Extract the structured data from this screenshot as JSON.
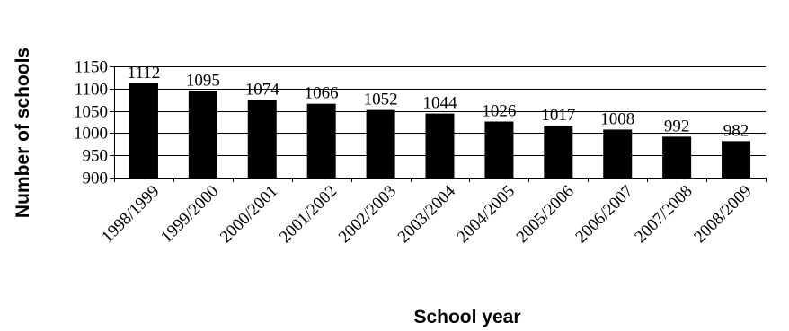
{
  "chart_data": {
    "type": "bar",
    "xlabel": "School year",
    "ylabel": "Number of schools",
    "ylim": [
      900,
      1150
    ],
    "yticks": [
      900,
      950,
      1000,
      1050,
      1100,
      1150
    ],
    "ytick_labels": [
      "900",
      "950",
      "1000",
      "1050",
      "1100",
      "1150"
    ],
    "categories": [
      "1998/1999",
      "1999/2000",
      "2000/2001",
      "2001/2002",
      "2002/2003",
      "2003/2004",
      "2004/2005",
      "2005/2006",
      "2006/2007",
      "2007/2008",
      "2008/2009"
    ],
    "values": [
      1112,
      1095,
      1074,
      1066,
      1052,
      1044,
      1026,
      1017,
      1008,
      992,
      982
    ],
    "data_labels": [
      "1112",
      "1095",
      "1074",
      "1066",
      "1052",
      "1044",
      "1026",
      "1017",
      "1008",
      "992",
      "982"
    ],
    "grid": true,
    "bar_color": "#000000"
  }
}
